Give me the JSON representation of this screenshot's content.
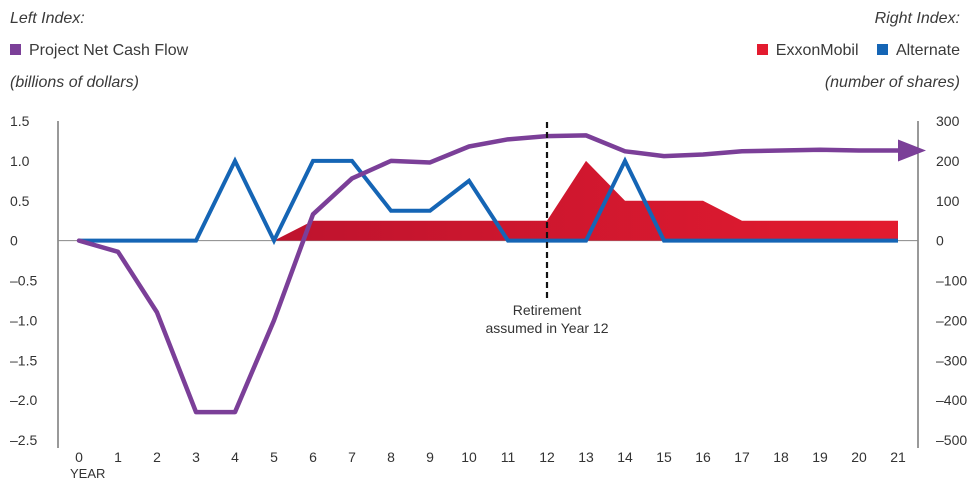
{
  "header": {
    "left_index_label": "Left Index:",
    "left_legend": "Project Net Cash Flow",
    "left_units": "(billions of dollars)",
    "right_index_label": "Right Index:",
    "right_units": "(number of shares)"
  },
  "legend": [
    {
      "name": "ExxonMobil",
      "color": "#e31b2f"
    },
    {
      "name": "Alternate",
      "color": "#1565b5"
    }
  ],
  "annotation": {
    "line1": "Retirement",
    "line2": "assumed in Year 12",
    "year": 12
  },
  "chart_data": {
    "type": "line",
    "xlabel": "YEAR",
    "x": [
      0,
      1,
      2,
      3,
      4,
      5,
      6,
      7,
      8,
      9,
      10,
      11,
      12,
      13,
      14,
      15,
      16,
      17,
      18,
      19,
      20,
      21
    ],
    "left_axis": {
      "ticks": [
        "1.5",
        "1.0",
        "0.5",
        "0",
        "–0.5",
        "–1.0",
        "–1.5",
        "–2.0",
        "–2.5"
      ],
      "ylim": [
        -2.5,
        1.5
      ]
    },
    "right_axis": {
      "ticks": [
        "300",
        "200",
        "100",
        "0",
        "–100",
        "–200",
        "–300",
        "–400",
        "–500"
      ],
      "ylim": [
        -500,
        300
      ]
    },
    "series": [
      {
        "name": "Project Net Cash Flow",
        "axis": "left",
        "kind": "line",
        "color": "#7b3f98",
        "values": [
          0,
          -0.14,
          -0.9,
          -2.15,
          -2.15,
          -1.0,
          0.33,
          0.78,
          1.0,
          0.98,
          1.18,
          1.27,
          1.31,
          1.32,
          1.12,
          1.06,
          1.08,
          1.12,
          1.13,
          1.14,
          1.13,
          1.13
        ]
      },
      {
        "name": "ExxonMobil",
        "axis": "right",
        "kind": "area",
        "color": "#e31b2f",
        "values": [
          0,
          0,
          0,
          0,
          0,
          0,
          50,
          50,
          50,
          50,
          50,
          50,
          50,
          200,
          100,
          100,
          100,
          50,
          50,
          50,
          50,
          50
        ]
      },
      {
        "name": "Alternate",
        "axis": "right",
        "kind": "line",
        "color": "#1565b5",
        "values": [
          0,
          0,
          0,
          0,
          200,
          0,
          200,
          200,
          75,
          75,
          150,
          0,
          0,
          0,
          200,
          0,
          0,
          0,
          0,
          0,
          0,
          0
        ]
      }
    ]
  }
}
